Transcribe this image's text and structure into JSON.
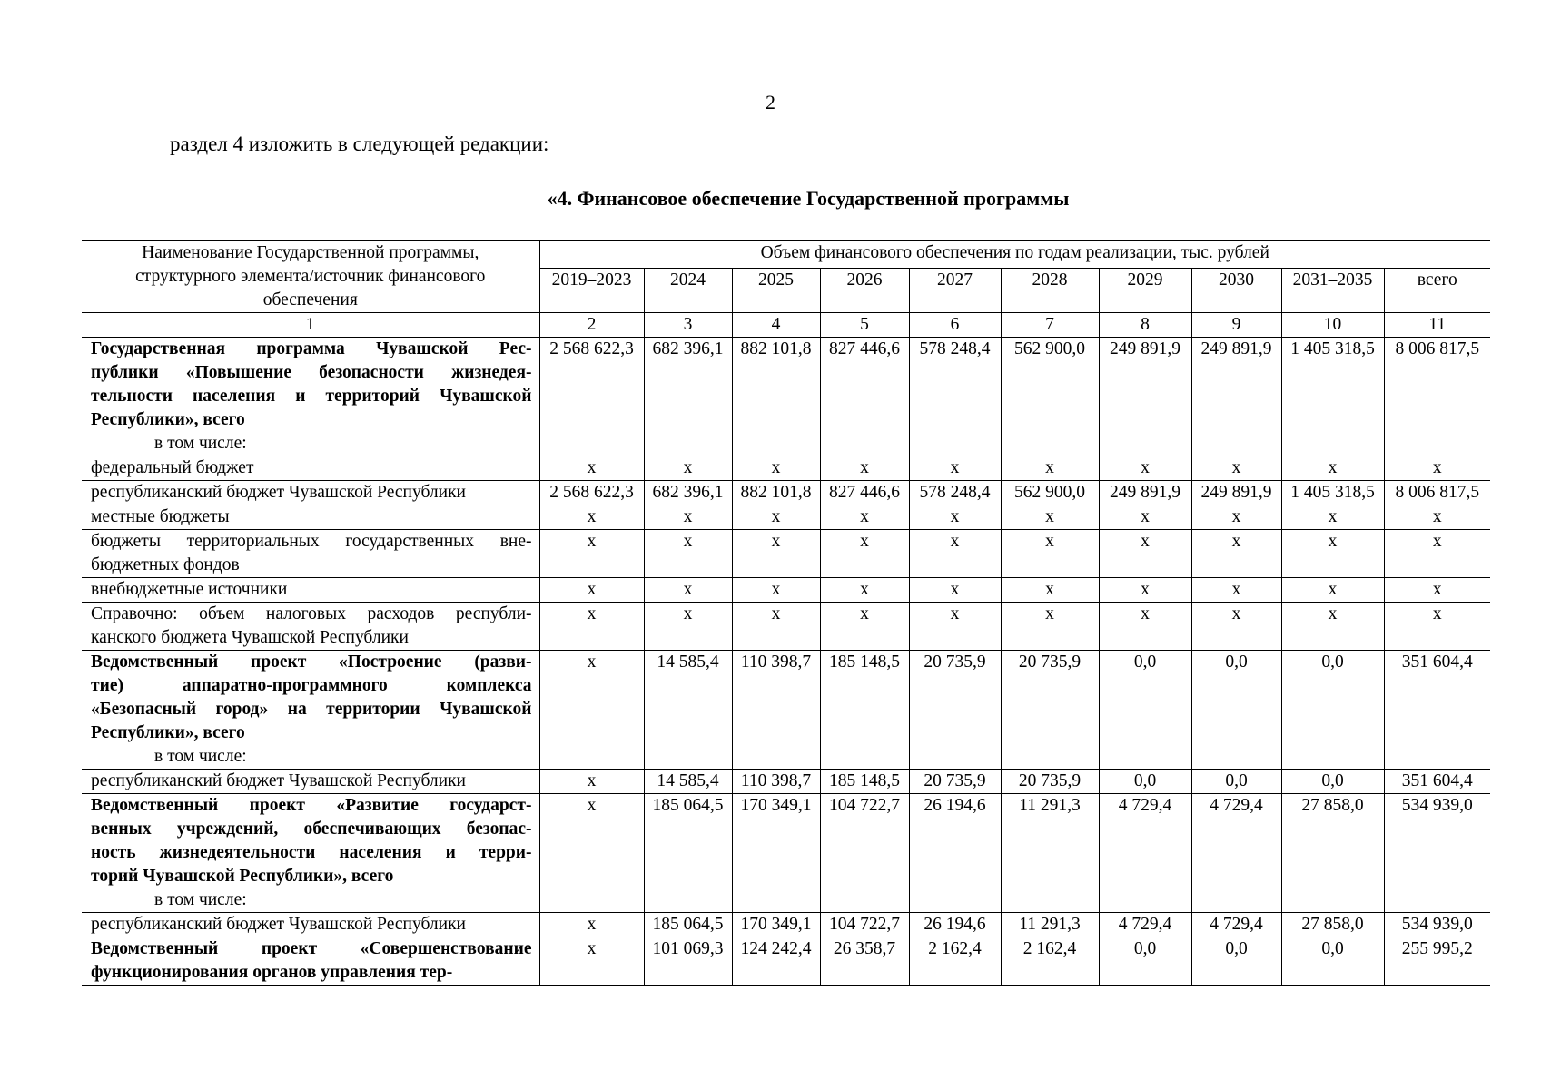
{
  "page_number": "2",
  "intro": "раздел 4 изложить в следующей редакции:",
  "title": "«4. Финансовое обеспечение Государственной программы",
  "table": {
    "name_header": "Наименование Государственной программы, структурного элемента/источник финансового обеспечения",
    "group_header": "Объем финансового обеспечения по годам реализации, тыс. рублей",
    "years": [
      "2019–2023",
      "2024",
      "2025",
      "2026",
      "2027",
      "2028",
      "2029",
      "2030",
      "2031–2035",
      "всего"
    ],
    "col_numbers": [
      "1",
      "2",
      "3",
      "4",
      "5",
      "6",
      "7",
      "8",
      "9",
      "10",
      "11"
    ],
    "rows": [
      {
        "bold": true,
        "lines": [
          "Государственная программа Чувашской Рес-",
          "публики «Повышение безопасности жизнедея-",
          "тельности населения и территорий Чувашской",
          "Республики», всего"
        ],
        "sub": "в том числе:",
        "values": [
          "2 568 622,3",
          "682 396,1",
          "882 101,8",
          "827 446,6",
          "578 248,4",
          "562 900,0",
          "249 891,9",
          "249 891,9",
          "1 405 318,5",
          "8 006 817,5"
        ]
      },
      {
        "bold": false,
        "lines": [
          "федеральный бюджет"
        ],
        "values": [
          "x",
          "x",
          "x",
          "x",
          "x",
          "x",
          "x",
          "x",
          "x",
          "x"
        ]
      },
      {
        "bold": false,
        "lines": [
          "республиканский бюджет Чувашской Республики"
        ],
        "values": [
          "2 568 622,3",
          "682 396,1",
          "882 101,8",
          "827 446,6",
          "578 248,4",
          "562 900,0",
          "249 891,9",
          "249 891,9",
          "1 405 318,5",
          "8 006 817,5"
        ]
      },
      {
        "bold": false,
        "lines": [
          "местные бюджеты"
        ],
        "values": [
          "x",
          "x",
          "x",
          "x",
          "x",
          "x",
          "x",
          "x",
          "x",
          "x"
        ]
      },
      {
        "bold": false,
        "lines": [
          "бюджеты территориальных государственных вне-",
          "бюджетных фондов"
        ],
        "values": [
          "x",
          "x",
          "x",
          "x",
          "x",
          "x",
          "x",
          "x",
          "x",
          "x"
        ]
      },
      {
        "bold": false,
        "lines": [
          "внебюджетные источники"
        ],
        "values": [
          "x",
          "x",
          "x",
          "x",
          "x",
          "x",
          "x",
          "x",
          "x",
          "x"
        ]
      },
      {
        "bold": false,
        "lines": [
          "Справочно: объем налоговых расходов республи-",
          "канского бюджета Чувашской Республики"
        ],
        "values": [
          "x",
          "x",
          "x",
          "x",
          "x",
          "x",
          "x",
          "x",
          "x",
          "x"
        ]
      },
      {
        "bold": true,
        "lines": [
          "Ведомственный проект «Построение (разви-",
          "тие) аппаратно-программного комплекса",
          "«Безопасный город» на территории Чувашской",
          "Республики», всего"
        ],
        "sub": "в том числе:",
        "values": [
          "x",
          "14 585,4",
          "110 398,7",
          "185 148,5",
          "20 735,9",
          "20 735,9",
          "0,0",
          "0,0",
          "0,0",
          "351 604,4"
        ]
      },
      {
        "bold": false,
        "lines": [
          "республиканский бюджет Чувашской Республики"
        ],
        "values": [
          "x",
          "14 585,4",
          "110 398,7",
          "185 148,5",
          "20 735,9",
          "20 735,9",
          "0,0",
          "0,0",
          "0,0",
          "351 604,4"
        ]
      },
      {
        "bold": true,
        "lines": [
          "Ведомственный проект «Развитие государст-",
          "венных учреждений, обеспечивающих безопас-",
          "ность жизнедеятельности населения и терри-",
          "торий Чувашской Республики», всего"
        ],
        "sub": "в том числе:",
        "values": [
          "x",
          "185 064,5",
          "170 349,1",
          "104 722,7",
          "26 194,6",
          "11 291,3",
          "4 729,4",
          "4 729,4",
          "27 858,0",
          "534 939,0"
        ]
      },
      {
        "bold": false,
        "lines": [
          "республиканский бюджет Чувашской Республики"
        ],
        "values": [
          "x",
          "185 064,5",
          "170 349,1",
          "104 722,7",
          "26 194,6",
          "11 291,3",
          "4 729,4",
          "4 729,4",
          "27 858,0",
          "534 939,0"
        ]
      },
      {
        "bold": true,
        "lines": [
          "Ведомственный проект «Совершенствование",
          "функционирования органов управления тер-"
        ],
        "values": [
          "x",
          "101 069,3",
          "124 242,4",
          "26 358,7",
          "2 162,4",
          "2 162,4",
          "0,0",
          "0,0",
          "0,0",
          "255 995,2"
        ]
      }
    ]
  }
}
